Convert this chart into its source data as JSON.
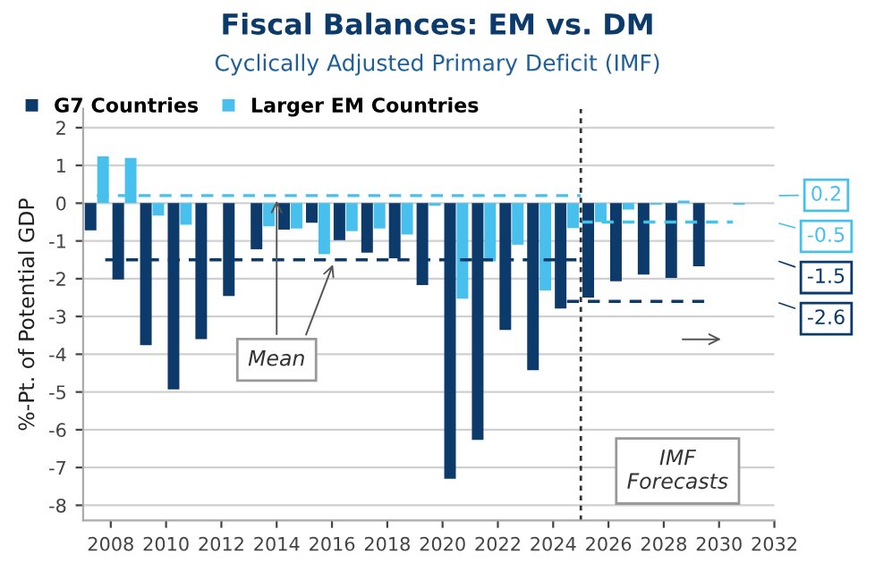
{
  "chart_data": {
    "type": "bar",
    "title": "Fiscal Balances: EM vs. DM",
    "subtitle": "Cyclically Adjusted Primary Deficit (IMF)",
    "ylabel": "%-Pt. of Potential GDP",
    "series": [
      {
        "name": "G7 Countries",
        "color": "#0b3a6b",
        "x": [
          2007.27,
          2008.27,
          2009.27,
          2010.27,
          2011.27,
          2012.27,
          2013.27,
          2014.27,
          2015.27,
          2016.27,
          2017.27,
          2018.27,
          2019.27,
          2020.27,
          2021.27,
          2022.27,
          2023.27,
          2024.27,
          2025.27,
          2026.27,
          2027.27,
          2028.27,
          2029.27
        ],
        "values": [
          -0.72,
          -2.02,
          -3.76,
          -4.93,
          -3.6,
          -2.46,
          -1.22,
          -0.7,
          -0.52,
          -0.98,
          -1.31,
          -1.46,
          -2.17,
          -7.3,
          -6.27,
          -3.36,
          -4.42,
          -2.79,
          -2.5,
          -2.07,
          -1.89,
          -1.98,
          -1.67
        ]
      },
      {
        "name": "Larger EM Countries",
        "color": "#48c0ee",
        "x": [
          2007.72,
          2008.72,
          2009.72,
          2010.72,
          2011.72,
          2012.72,
          2013.72,
          2014.72,
          2015.72,
          2016.72,
          2017.72,
          2018.72,
          2019.72,
          2020.72,
          2021.72,
          2022.72,
          2023.72,
          2024.72,
          2025.72,
          2026.72,
          2027.72,
          2028.72,
          2029.72,
          2030.72
        ],
        "values": [
          1.24,
          1.2,
          -0.33,
          -0.57,
          null,
          null,
          -0.61,
          -0.67,
          -1.35,
          -0.74,
          -0.67,
          -0.83,
          -0.07,
          -2.53,
          -1.54,
          -1.1,
          -2.31,
          -0.66,
          -0.5,
          -0.17,
          -0.04,
          0.07,
          null,
          -0.04
        ]
      },
      {
        "type": "line",
        "color": "#48c0ee",
        "line_style": "dashed",
        "x": [
          2007.5,
          2025
        ],
        "values": [
          0.2,
          0.2
        ]
      },
      {
        "type": "line",
        "color": "#48c0ee",
        "line_style": "dashed",
        "x": [
          2025,
          2030.5
        ],
        "values": [
          -0.5,
          -0.5
        ]
      },
      {
        "type": "line",
        "color": "#0b3a6b",
        "line_style": "dashed",
        "x": [
          2007.8,
          2025
        ],
        "values": [
          -1.5,
          -1.5
        ]
      },
      {
        "type": "line",
        "color": "#0b3a6b",
        "line_style": "dashed",
        "x": [
          2024.5,
          2029.6
        ],
        "values": [
          -2.6,
          -2.6
        ]
      }
    ],
    "ref_lines": [
      {
        "axis": "x",
        "value": 2025,
        "color": "#333333",
        "line_style": "dotted"
      }
    ],
    "annotations": [
      {
        "text": "Mean",
        "x": 2014,
        "y": 0.2
      },
      "IMF\nForecasts",
      "0.2",
      "-0.5",
      "-1.5",
      "-2.6"
    ],
    "xlim": [
      2007,
      2032
    ],
    "xticks": [
      2008,
      2010,
      2012,
      2014,
      2016,
      2018,
      2020,
      2022,
      2024,
      2026,
      2028,
      2030,
      2032
    ],
    "ylim": [
      -8.4,
      2.5
    ],
    "yticks": [
      -8,
      -7,
      -6,
      -5,
      -4,
      -3,
      -2,
      -1,
      0,
      1,
      2
    ],
    "grid": "y",
    "legend": "top left"
  }
}
